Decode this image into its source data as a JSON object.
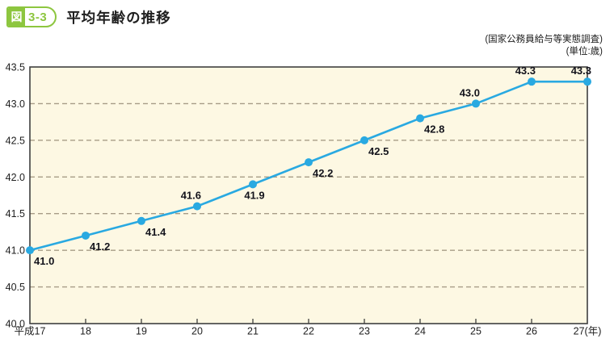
{
  "header": {
    "badge_prefix": "図",
    "badge_number": "3-3",
    "title": "平均年齢の推移"
  },
  "source_note": {
    "line1": "(国家公務員給与等実態調査)",
    "line2": "(単位:歳)"
  },
  "chart_data": {
    "type": "line",
    "title": "平均年齢の推移",
    "x_labels": [
      "平成17",
      "18",
      "19",
      "20",
      "21",
      "22",
      "23",
      "24",
      "25",
      "26",
      "27(年)"
    ],
    "values": [
      41.0,
      41.2,
      41.4,
      41.6,
      41.9,
      42.2,
      42.5,
      42.8,
      43.0,
      43.3,
      43.3
    ],
    "point_labels": [
      "41.0",
      "41.2",
      "41.4",
      "41.6",
      "41.9",
      "42.2",
      "42.5",
      "42.8",
      "43.0",
      "43.3",
      "43.3"
    ],
    "point_label_positions": [
      "below-right",
      "below-right",
      "below-right",
      "above-left",
      "below",
      "below-right",
      "below-right",
      "below-right",
      "above-left",
      "above-left",
      "above-left"
    ],
    "ylim": [
      40.0,
      43.5
    ],
    "yticks": [
      40.0,
      40.5,
      41.0,
      41.5,
      42.0,
      42.5,
      43.0,
      43.5
    ],
    "ytick_labels": [
      "40.0",
      "40.5",
      "41.0",
      "41.5",
      "42.0",
      "42.5",
      "43.0",
      "43.5"
    ],
    "grid": "horizontal-dashed",
    "legend": "none",
    "colors": {
      "line": "#29a9e1",
      "point": "#29a9e1",
      "plot_bg": "#fdf8e3",
      "grid": "#a79c86",
      "border": "#3f3f3f",
      "tick": "#3f3f3f",
      "data_label": "#14141c",
      "accent_green": "#8dc63f"
    }
  }
}
